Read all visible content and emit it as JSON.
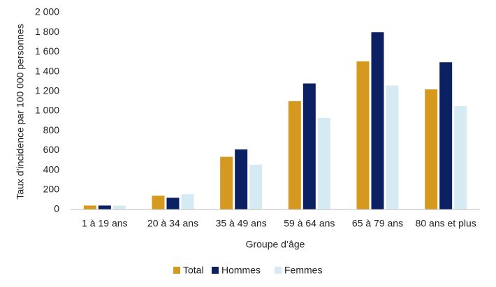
{
  "chart_data": {
    "type": "bar",
    "categories": [
      "1 à 19 ans",
      "20 à 34 ans",
      "35 à 49 ans",
      "59 à 64 ans",
      "65 à 79 ans",
      "80 ans et plus"
    ],
    "series": [
      {
        "name": "Total",
        "color": "#d4991e",
        "values": [
          40,
          140,
          535,
          1100,
          1505,
          1220
        ]
      },
      {
        "name": "Hommes",
        "color": "#0b2161",
        "values": [
          40,
          120,
          610,
          1280,
          1800,
          1495
        ]
      },
      {
        "name": "Femmes",
        "color": "#d6eaf3",
        "values": [
          40,
          155,
          455,
          930,
          1260,
          1050
        ]
      }
    ],
    "x_label": "Groupe d’âge",
    "y_label": "Taux d’incidence par 100 000 personnes",
    "ylim": [
      0,
      2000
    ],
    "yticks": [
      0,
      200,
      400,
      600,
      800,
      {
        "value": 1000,
        "label": "1 000"
      },
      {
        "value": 1200,
        "label": "1 200"
      },
      {
        "value": 1400,
        "label": "1 400"
      },
      {
        "value": 1600,
        "label": "1 600"
      },
      {
        "value": 1800,
        "label": "1 800"
      },
      {
        "value": 2000,
        "label": "2 000"
      }
    ],
    "grid": false,
    "legend": "bottom"
  }
}
